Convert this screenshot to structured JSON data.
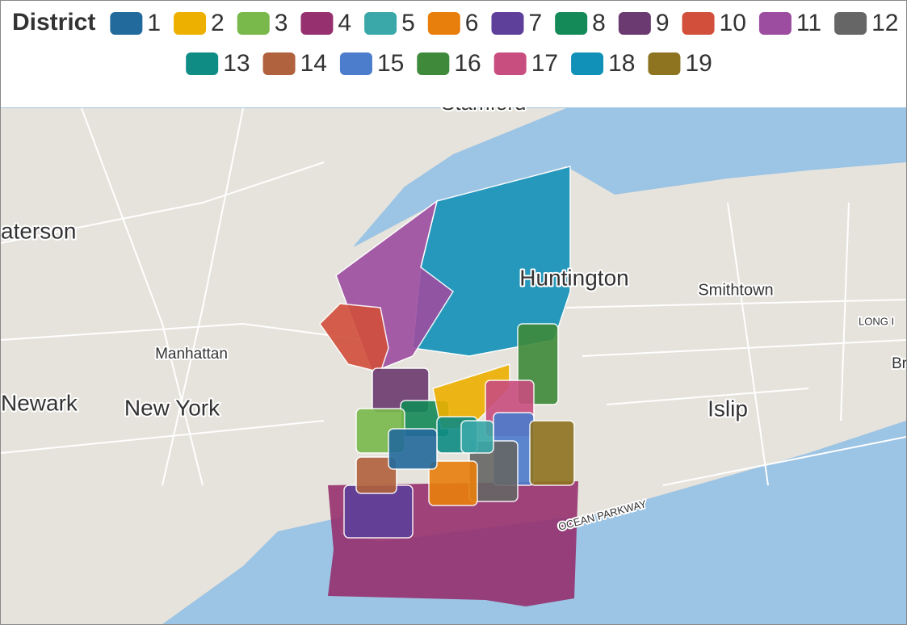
{
  "legend": {
    "title": "District",
    "items": [
      {
        "label": "1",
        "color": "#236a9c"
      },
      {
        "label": "2",
        "color": "#eeb000"
      },
      {
        "label": "3",
        "color": "#79b94b"
      },
      {
        "label": "4",
        "color": "#96306e"
      },
      {
        "label": "5",
        "color": "#3aa8a8"
      },
      {
        "label": "6",
        "color": "#e87f0c"
      },
      {
        "label": "7",
        "color": "#5e3f9a"
      },
      {
        "label": "8",
        "color": "#148a58"
      },
      {
        "label": "9",
        "color": "#6b3a70"
      },
      {
        "label": "10",
        "color": "#d14f3b"
      },
      {
        "label": "11",
        "color": "#9c4da0"
      },
      {
        "label": "12",
        "color": "#666666"
      },
      {
        "label": "13",
        "color": "#0f8c84"
      },
      {
        "label": "14",
        "color": "#b0613d"
      },
      {
        "label": "15",
        "color": "#4c7ccc"
      },
      {
        "label": "16",
        "color": "#3e8a3a"
      },
      {
        "label": "17",
        "color": "#c94e80"
      },
      {
        "label": "18",
        "color": "#1190b8"
      },
      {
        "label": "19",
        "color": "#8e7320"
      }
    ]
  },
  "map": {
    "labels": [
      "Stamford",
      "aterson",
      "Manhattan",
      "Newark",
      "New York",
      "Huntington",
      "Smithtown",
      "Islip",
      "LONG I",
      "Br",
      "OCEAN PARKWAY"
    ]
  }
}
